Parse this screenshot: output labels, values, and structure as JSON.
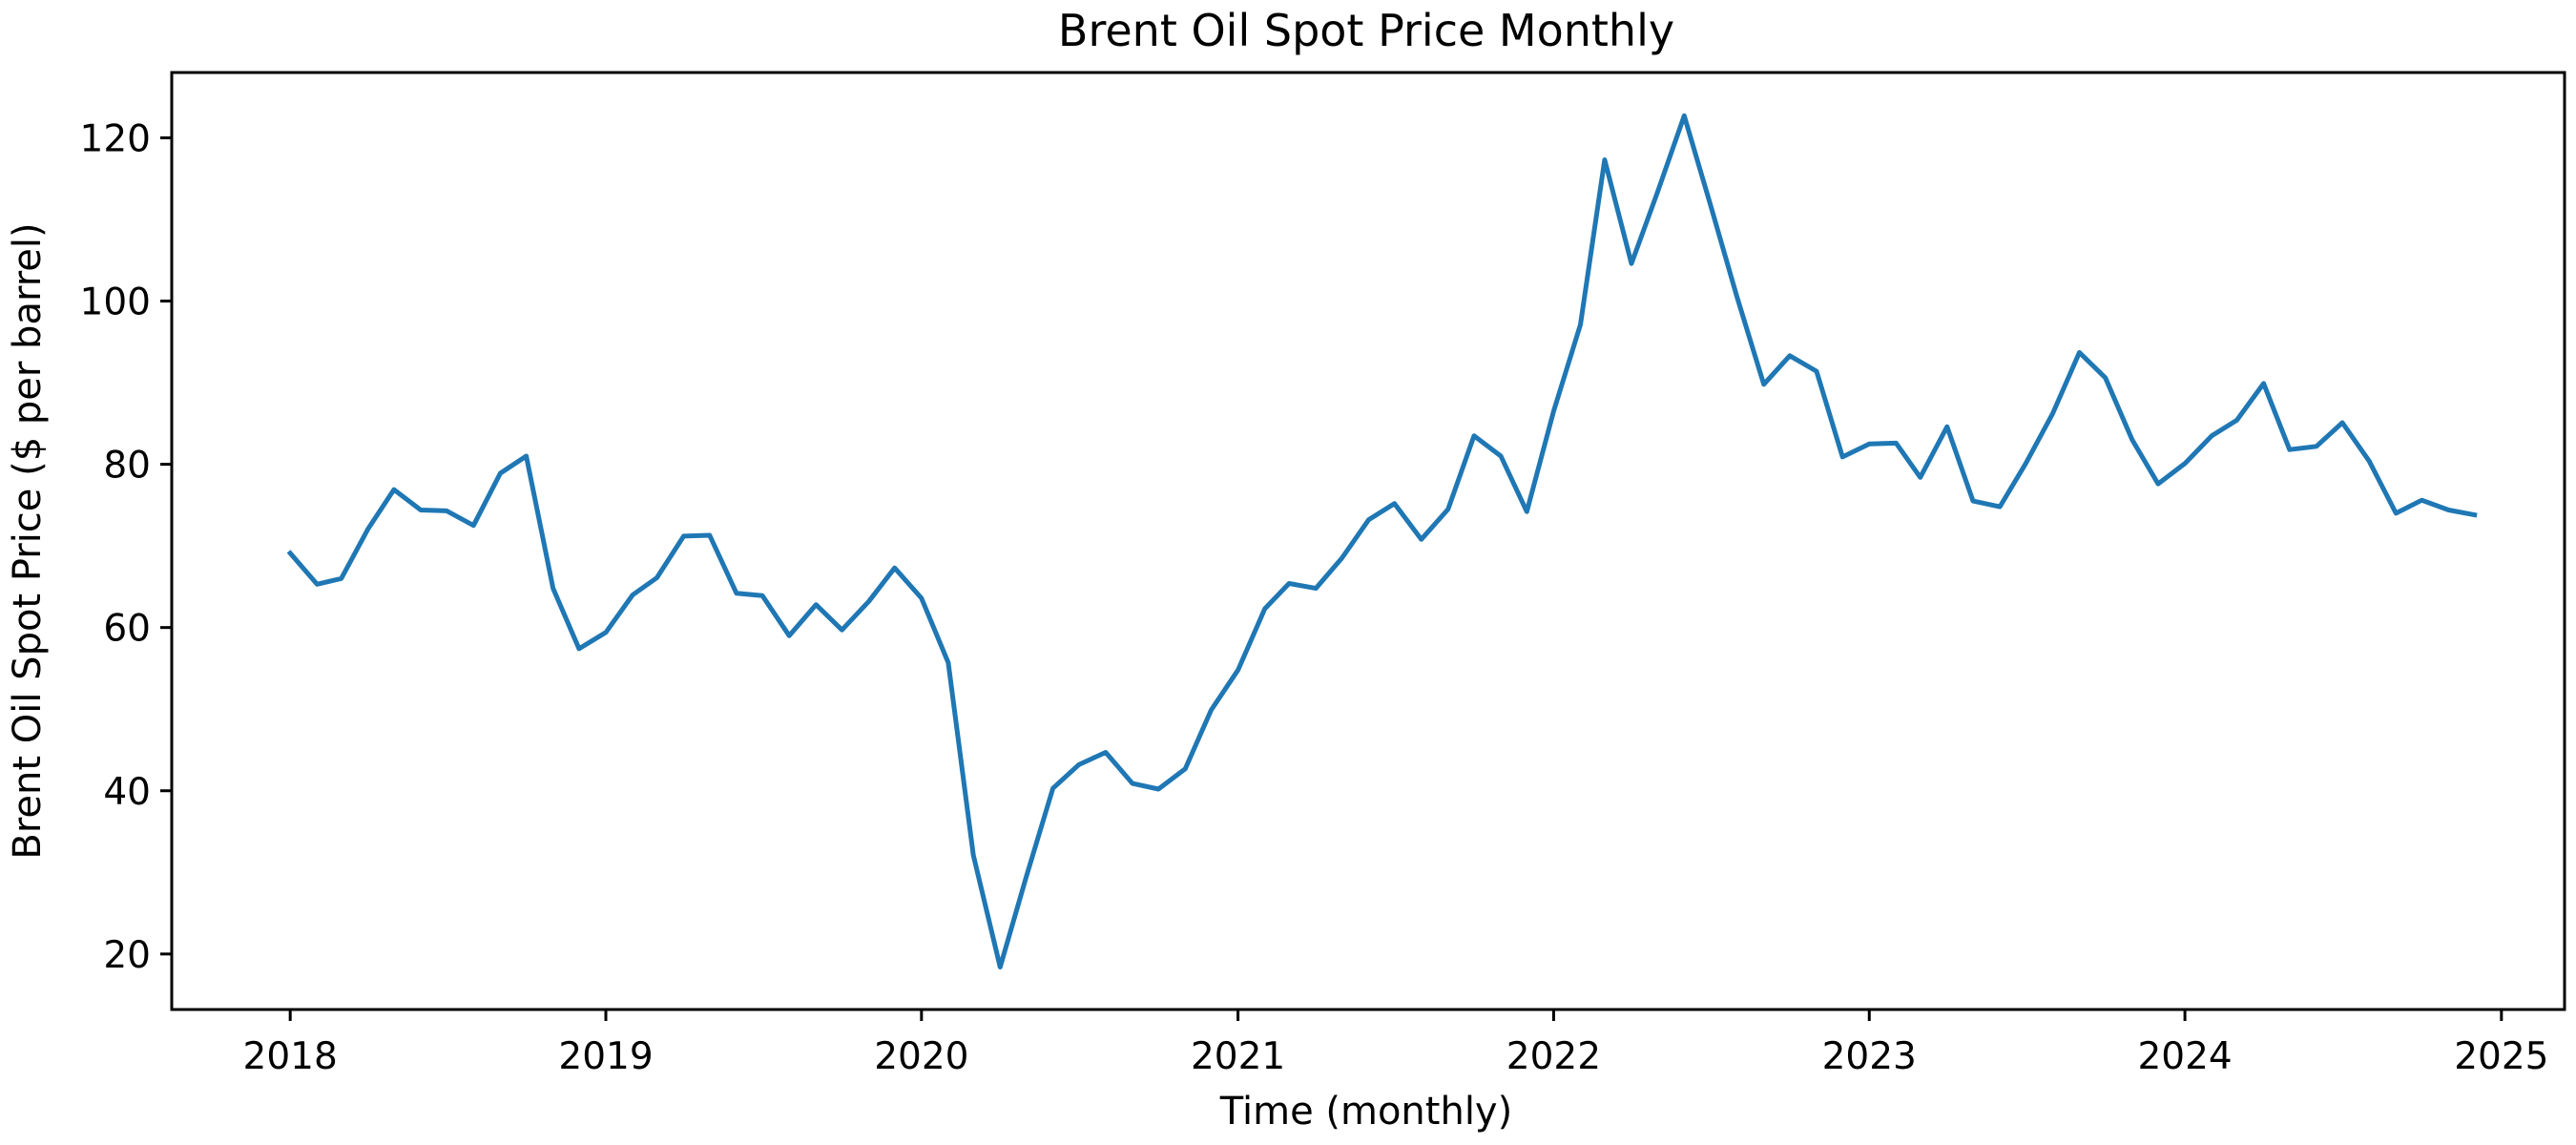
{
  "chart_data": {
    "type": "line",
    "title": "Brent Oil Spot Price Monthly",
    "xlabel": "Time (monthly)",
    "ylabel": "Brent Oil Spot Price ($ per barrel)",
    "xlim": [
      "2017-08-17",
      "2025-03-15"
    ],
    "ylim": [
      13.2,
      128.0
    ],
    "x_ticks": [
      "2018",
      "2019",
      "2020",
      "2021",
      "2022",
      "2023",
      "2024",
      "2025"
    ],
    "y_ticks": [
      20,
      40,
      60,
      80,
      100,
      120
    ],
    "grid": false,
    "legend": "none",
    "colors": {
      "line": "#1f77b4",
      "axes": "#000000",
      "background": "#ffffff"
    },
    "series": [
      {
        "x": [
          "2018-01",
          "2018-02",
          "2018-03",
          "2018-04",
          "2018-05",
          "2018-06",
          "2018-07",
          "2018-08",
          "2018-09",
          "2018-10",
          "2018-11",
          "2018-12",
          "2019-01",
          "2019-02",
          "2019-03",
          "2019-04",
          "2019-05",
          "2019-06",
          "2019-07",
          "2019-08",
          "2019-09",
          "2019-10",
          "2019-11",
          "2019-12",
          "2020-01",
          "2020-02",
          "2020-03",
          "2020-04",
          "2020-05",
          "2020-06",
          "2020-07",
          "2020-08",
          "2020-09",
          "2020-10",
          "2020-11",
          "2020-12",
          "2021-01",
          "2021-02",
          "2021-03",
          "2021-04",
          "2021-05",
          "2021-06",
          "2021-07",
          "2021-08",
          "2021-09",
          "2021-10",
          "2021-11",
          "2021-12",
          "2022-01",
          "2022-02",
          "2022-03",
          "2022-04",
          "2022-05",
          "2022-06",
          "2022-07",
          "2022-08",
          "2022-09",
          "2022-10",
          "2022-11",
          "2022-12",
          "2023-01",
          "2023-02",
          "2023-03",
          "2023-04",
          "2023-05",
          "2023-06",
          "2023-07",
          "2023-08",
          "2023-09",
          "2023-10",
          "2023-11",
          "2023-12",
          "2024-01",
          "2024-02",
          "2024-03",
          "2024-04",
          "2024-05",
          "2024-06",
          "2024-07",
          "2024-08",
          "2024-09",
          "2024-10",
          "2024-11",
          "2024-12"
        ],
        "values": [
          69.1,
          65.3,
          66.0,
          72.1,
          76.9,
          74.4,
          74.3,
          72.5,
          78.9,
          81.0,
          64.8,
          57.4,
          59.4,
          64.0,
          66.1,
          71.2,
          71.3,
          64.2,
          63.9,
          59.0,
          62.8,
          59.7,
          63.2,
          67.3,
          63.6,
          55.7,
          32.1,
          18.4,
          29.4,
          40.3,
          43.2,
          44.7,
          40.9,
          40.2,
          42.7,
          49.9,
          54.8,
          62.3,
          65.4,
          64.8,
          68.5,
          73.2,
          75.2,
          70.8,
          74.5,
          83.5,
          81.0,
          74.2,
          86.5,
          97.1,
          117.3,
          104.6,
          113.3,
          122.7,
          111.9,
          100.5,
          89.8,
          93.3,
          91.4,
          80.9,
          82.5,
          82.6,
          78.4,
          84.6,
          75.5,
          74.8,
          80.1,
          86.2,
          93.7,
          90.6,
          83.0,
          77.6,
          80.1,
          83.5,
          85.4,
          89.9,
          81.8,
          82.2,
          85.1,
          80.4,
          74.0,
          75.6,
          74.4,
          73.8
        ]
      }
    ]
  }
}
